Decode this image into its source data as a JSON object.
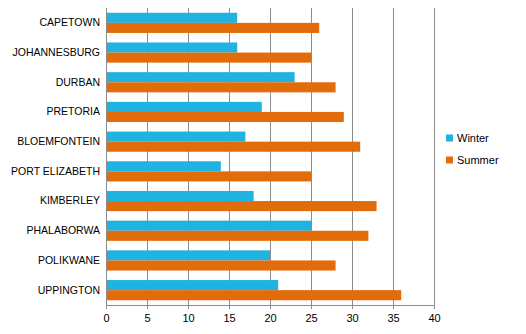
{
  "chart_data": {
    "type": "bar",
    "orientation": "horizontal",
    "grid": true,
    "legend": "right",
    "categories": [
      "CAPETOWN",
      "JOHANNESBURG",
      "DURBAN",
      "PRETORIA",
      "BLOEMFONTEIN",
      "PORT ELIZABETH",
      "KIMBERLEY",
      "PHALABORWA",
      "POLIKWANE",
      "UPPINGTON"
    ],
    "series": [
      {
        "name": "Winter",
        "color": "#1fb3e1",
        "values": [
          16,
          16,
          23,
          19,
          17,
          14,
          18,
          25,
          20,
          21
        ]
      },
      {
        "name": "Summer",
        "color": "#e36c0a",
        "values": [
          26,
          25,
          28,
          29,
          31,
          25,
          33,
          32,
          28,
          36
        ]
      }
    ],
    "xlim": [
      0,
      40
    ],
    "xticks": [
      0,
      5,
      10,
      15,
      20,
      25,
      30,
      35,
      40
    ]
  }
}
